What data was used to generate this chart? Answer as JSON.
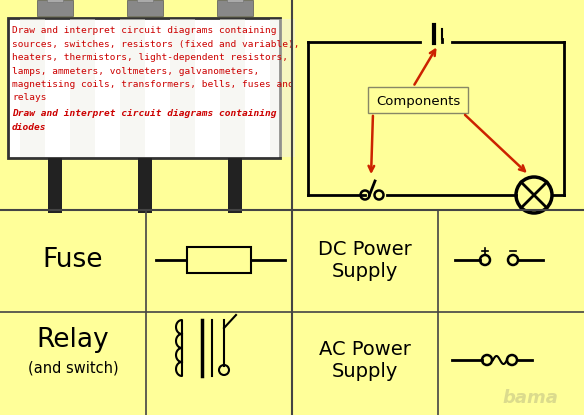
{
  "bg_color": "#ffff99",
  "billboard_text_lines": [
    "Draw and interpret circuit diagrams containing",
    "sources, switches, resistors (fixed and variable),",
    "heaters, thermistors, light-dependent resistors,",
    "lamps, ammeters, voltmeters, galvanometers,",
    "magnetising coils, transformers, bells, fuses and",
    "relays"
  ],
  "billboard_bold_lines": [
    "Draw and interpret circuit diagrams containing",
    "diodes"
  ],
  "components_label": "Components",
  "fuse_label": "Fuse",
  "relay_label": "Relay",
  "relay_sub": "(and switch)",
  "dc_label": "DC Power\nSupply",
  "ac_label": "AC Power\nSupply",
  "grid_line_color": "#444444",
  "circuit_color": "#000000",
  "arrow_color": "#cc2200",
  "red_text": "#cc0000",
  "bama_color": "#cccc88",
  "pole_color": "#222222",
  "cap_color": "#888888",
  "board_bg": "#ffffff"
}
